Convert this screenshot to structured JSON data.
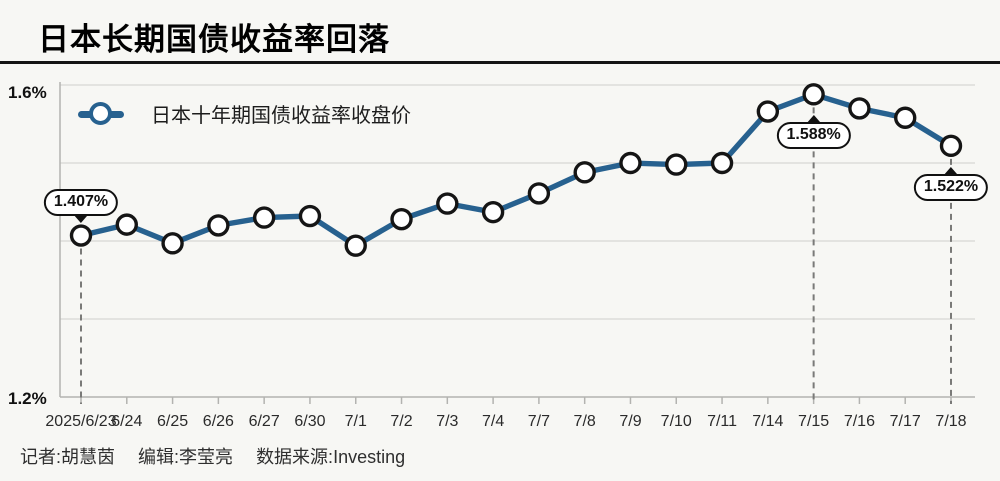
{
  "header": {
    "title": "日本长期国债收益率回落"
  },
  "colors": {
    "line": "#27618f",
    "marker_ring": "#151515",
    "marker_fill": "#ffffff",
    "grid": "#d7d7d4",
    "axis": "#b3b3b0",
    "dashed": "#7a7a78",
    "background": "#f7f7f4",
    "annotation_border": "#111111"
  },
  "chart_data": {
    "type": "line",
    "title": "日本长期国债收益率回落",
    "categories": [
      "2025/6/23",
      "6/24",
      "6/25",
      "6/26",
      "6/27",
      "6/30",
      "7/1",
      "7/2",
      "7/3",
      "7/4",
      "7/7",
      "7/8",
      "7/9",
      "7/10",
      "7/11",
      "7/14",
      "7/15",
      "7/16",
      "7/17",
      "7/18"
    ],
    "series": [
      {
        "name": "日本十年期国债收益率收盘价",
        "values": [
          1.407,
          1.421,
          1.397,
          1.42,
          1.43,
          1.432,
          1.394,
          1.428,
          1.448,
          1.437,
          1.461,
          1.488,
          1.5,
          1.498,
          1.5,
          1.566,
          1.588,
          1.57,
          1.558,
          1.522
        ]
      }
    ],
    "unit": "%",
    "ylim": [
      1.2,
      1.6
    ],
    "yticks": [
      1.2,
      1.3,
      1.4,
      1.5,
      1.6
    ],
    "ylabels": {
      "top": "1.6%",
      "bottom": "1.2%"
    },
    "grid": "horizontal",
    "legend_position": "top-left",
    "annotations": [
      {
        "index": 0,
        "label": "1.407%",
        "placement": "above"
      },
      {
        "index": 16,
        "label": "1.588%",
        "placement": "below"
      },
      {
        "index": 19,
        "label": "1.522%",
        "placement": "below"
      }
    ]
  },
  "footer": {
    "reporter": "记者:胡慧茵",
    "editor": "编辑:李莹亮",
    "source": "数据来源:Investing"
  }
}
